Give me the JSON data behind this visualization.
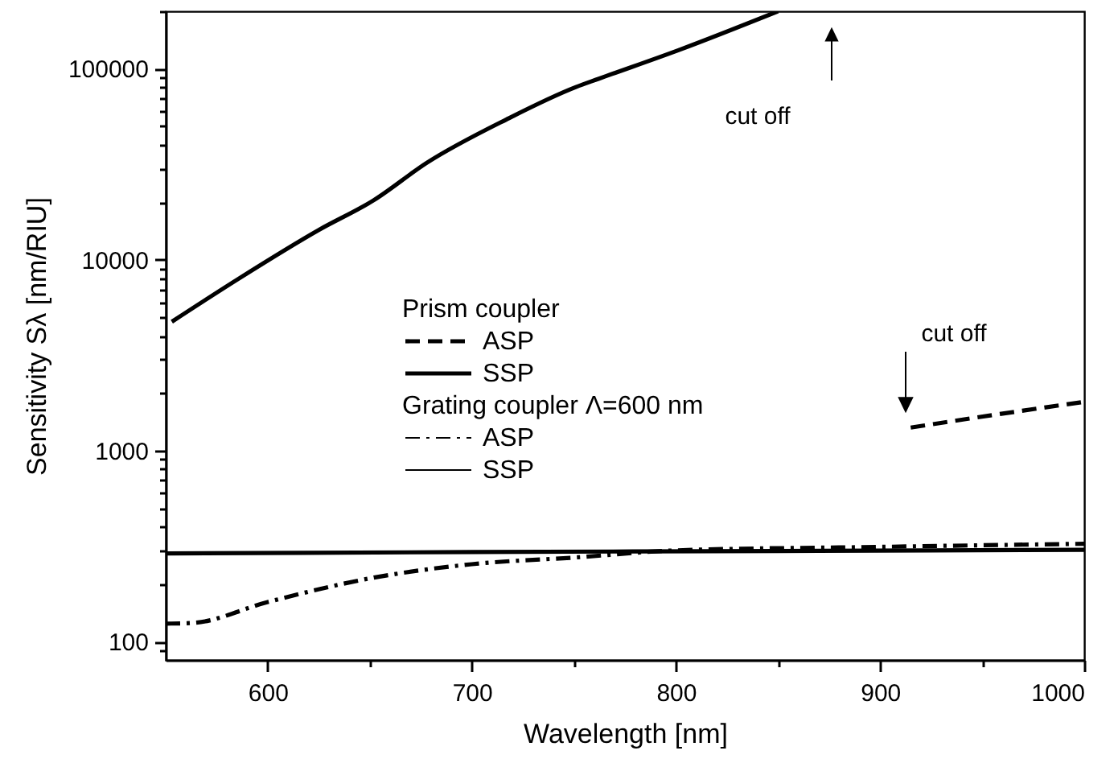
{
  "chart_data": {
    "type": "line",
    "xlabel": "Wavelength [nm]",
    "ylabel": "Sensitivity Sλ [nm/RIU]",
    "log": "y",
    "grid": false,
    "legend": "center",
    "xlim": [
      550,
      1000
    ],
    "ylim": [
      80,
      200000
    ],
    "xticks": [
      600,
      {
        "value": 650,
        "label": null
      },
      700,
      {
        "value": 750,
        "label": null
      },
      800,
      {
        "value": 850,
        "label": null
      },
      900,
      {
        "value": 950,
        "label": null
      },
      1000
    ],
    "yticks": [
      {
        "value": 90,
        "label": null
      },
      100,
      {
        "value": 200,
        "label": null
      },
      {
        "value": 300,
        "label": null
      },
      {
        "value": 400,
        "label": null
      },
      {
        "value": 500,
        "label": null
      },
      {
        "value": 600,
        "label": null
      },
      {
        "value": 700,
        "label": null
      },
      {
        "value": 800,
        "label": null
      },
      {
        "value": 900,
        "label": null
      },
      1000,
      {
        "value": 2000,
        "label": null
      },
      {
        "value": 3000,
        "label": null
      },
      {
        "value": 4000,
        "label": null
      },
      {
        "value": 5000,
        "label": null
      },
      {
        "value": 6000,
        "label": null
      },
      {
        "value": 7000,
        "label": null
      },
      {
        "value": 8000,
        "label": null
      },
      {
        "value": 9000,
        "label": null
      },
      10000,
      {
        "value": 20000,
        "label": null
      },
      {
        "value": 30000,
        "label": null
      },
      {
        "value": 40000,
        "label": null
      },
      {
        "value": 50000,
        "label": null
      },
      {
        "value": 60000,
        "label": null
      },
      {
        "value": 70000,
        "label": null
      },
      {
        "value": 80000,
        "label": null
      },
      {
        "value": 90000,
        "label": null
      },
      100000,
      {
        "value": 200000,
        "label": null
      }
    ],
    "annotations": [
      "cut off",
      "cut off",
      "Prism coupler",
      "Grating coupler Λ=600 nm"
    ],
    "series": [
      {
        "name": "ASP",
        "color": "#000000",
        "line_style": "dashed",
        "x": [
          915,
          958,
          1000
        ],
        "values": [
          1320,
          1550,
          1800
        ]
      },
      {
        "name": "SSP",
        "color": "#000000",
        "line_style": "solid",
        "x": [
          553,
          586,
          625,
          652,
          678,
          717,
          751,
          762,
          802,
          850
        ],
        "values": [
          4730,
          7980,
          14300,
          20500,
          32200,
          54300,
          80200,
          88500,
          126000,
          200000
        ]
      },
      {
        "name": "ASP",
        "color": "#000000",
        "line_style": "dashdot",
        "x": [
          550,
          563,
          600,
          652,
          700,
          752,
          800,
          900,
          1000
        ],
        "values": [
          124,
          125,
          161,
          216,
          254,
          276,
          300,
          313,
          325
        ]
      },
      {
        "name": "SSP",
        "color": "#000000",
        "line_style": "solid",
        "x": [
          550,
          700,
          850,
          1000
        ],
        "values": [
          289,
          294,
          298,
          302
        ]
      }
    ]
  }
}
